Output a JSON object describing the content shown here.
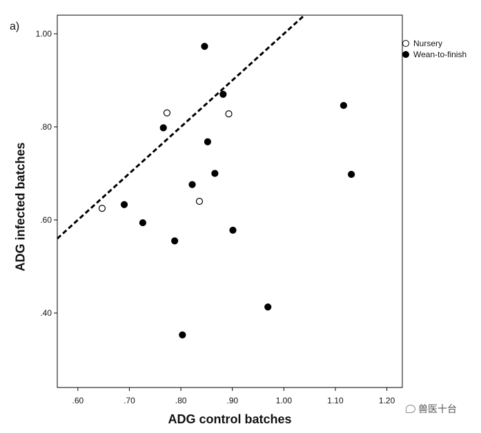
{
  "panel_label": "a)",
  "watermark": {
    "text": "兽医十台",
    "icon": "wechat-icon"
  },
  "chart_data": {
    "type": "scatter",
    "xlabel": "ADG control batches",
    "ylabel": "ADG infected batches",
    "xlim": [
      0.56,
      1.23
    ],
    "ylim": [
      0.24,
      1.04
    ],
    "x_ticks": [
      0.6,
      0.7,
      0.8,
      0.9,
      1.0,
      1.1,
      1.2
    ],
    "x_tick_labels": [
      ".60",
      ".70",
      ".80",
      ".90",
      "1.00",
      "1.10",
      "1.20"
    ],
    "y_ticks": [
      0.4,
      0.6,
      0.8,
      1.0
    ],
    "y_tick_labels": [
      ".40",
      ".60",
      ".80",
      "1.00"
    ],
    "grid": false,
    "legend_placement": "top-right outside",
    "reference_line": {
      "style": "dashed",
      "slope": 1,
      "intercept": 0,
      "color": "#000000"
    },
    "series": [
      {
        "name": "Nursery",
        "marker": "open-circle",
        "points": [
          {
            "x": 0.647,
            "y": 0.625
          },
          {
            "x": 0.773,
            "y": 0.83
          },
          {
            "x": 0.836,
            "y": 0.64
          },
          {
            "x": 0.893,
            "y": 0.828
          }
        ]
      },
      {
        "name": "Wean-to-finish",
        "marker": "filled-circle",
        "points": [
          {
            "x": 0.846,
            "y": 0.973
          },
          {
            "x": 0.882,
            "y": 0.87
          },
          {
            "x": 0.766,
            "y": 0.798
          },
          {
            "x": 0.852,
            "y": 0.768
          },
          {
            "x": 0.866,
            "y": 0.7
          },
          {
            "x": 0.822,
            "y": 0.676
          },
          {
            "x": 0.69,
            "y": 0.633
          },
          {
            "x": 0.726,
            "y": 0.594
          },
          {
            "x": 0.788,
            "y": 0.555
          },
          {
            "x": 0.901,
            "y": 0.578
          },
          {
            "x": 0.969,
            "y": 0.413
          },
          {
            "x": 0.803,
            "y": 0.353
          },
          {
            "x": 1.116,
            "y": 0.846
          },
          {
            "x": 1.131,
            "y": 0.698
          }
        ]
      }
    ]
  },
  "colors": {
    "marker": "#000000",
    "axis": "#000000",
    "background": "#ffffff"
  }
}
